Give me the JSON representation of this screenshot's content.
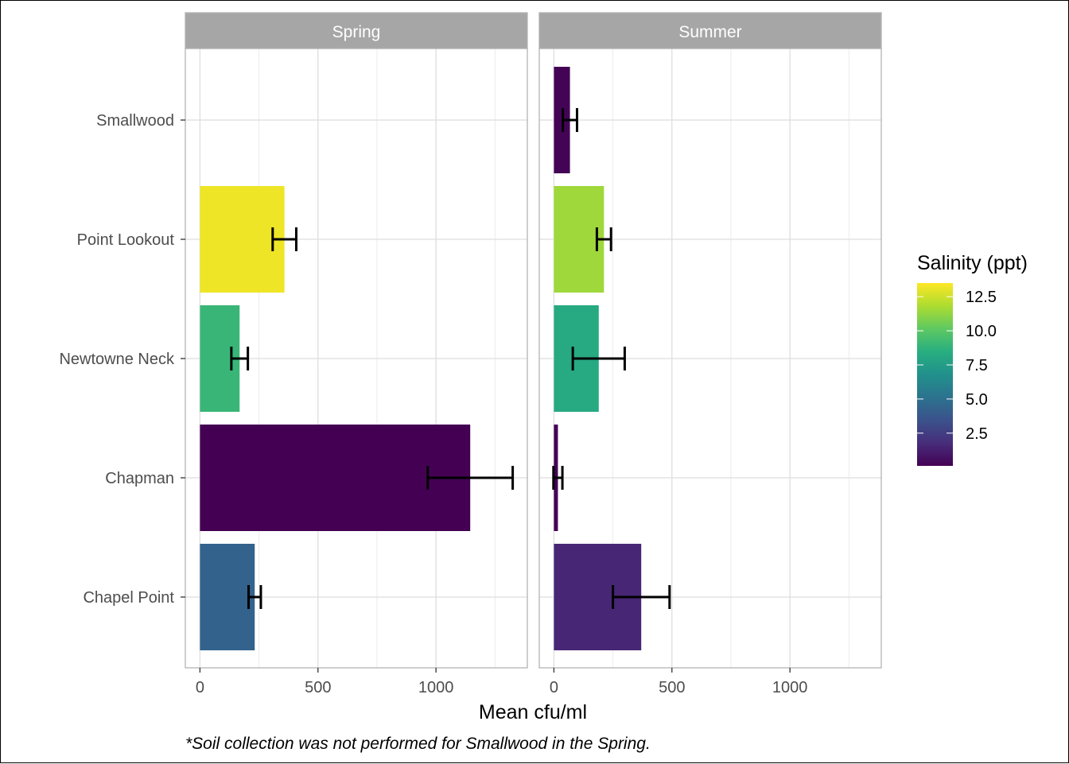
{
  "chart_data": {
    "type": "bar",
    "orientation": "horizontal",
    "categories": [
      "Smallwood",
      "Point Lookout",
      "Newtowne Neck",
      "Chapman",
      "Chapel Point"
    ],
    "facets": [
      {
        "title": "Spring",
        "bars": [
          {
            "category": "Smallwood",
            "value": null,
            "err_low": null,
            "err_high": null,
            "salinity": null
          },
          {
            "category": "Point Lookout",
            "value": 358,
            "err_low": 308,
            "err_high": 408,
            "salinity": 13.2
          },
          {
            "category": "Newtowne Neck",
            "value": 168,
            "err_low": 133,
            "err_high": 203,
            "salinity": 9.0
          },
          {
            "category": "Chapman",
            "value": 1145,
            "err_low": 965,
            "err_high": 1325,
            "salinity": 0.1
          },
          {
            "category": "Chapel Point",
            "value": 232,
            "err_low": 206,
            "err_high": 258,
            "salinity": 4.3
          }
        ]
      },
      {
        "title": "Summer",
        "bars": [
          {
            "category": "Smallwood",
            "value": 68,
            "err_low": 38,
            "err_high": 98,
            "salinity": 0.2
          },
          {
            "category": "Point Lookout",
            "value": 212,
            "err_low": 182,
            "err_high": 242,
            "salinity": 11.5
          },
          {
            "category": "Newtowne Neck",
            "value": 190,
            "err_low": 80,
            "err_high": 300,
            "salinity": 8.2
          },
          {
            "category": "Chapman",
            "value": 17,
            "err_low": -2,
            "err_high": 36,
            "salinity": 0.1
          },
          {
            "category": "Chapel Point",
            "value": 370,
            "err_low": 250,
            "err_high": 490,
            "salinity": 1.5
          }
        ]
      }
    ],
    "xlabel": "Mean cfu/ml",
    "ylabel": "",
    "xlim": [
      -62,
      1387
    ],
    "xticks": [
      0,
      500,
      1000
    ],
    "xtick_labels": [
      "0",
      "500",
      "1000"
    ],
    "legend": {
      "title": "Salinity (ppt)",
      "placement": "right",
      "range": [
        0.1,
        13.5
      ],
      "ticks": [
        2.5,
        5.0,
        7.5,
        10.0,
        12.5
      ],
      "tick_labels": [
        "2.5",
        "5.0",
        "7.5",
        "10.0",
        "12.5"
      ]
    },
    "grid": true,
    "caption": "*Soil collection was not performed for Smallwood in the Spring."
  }
}
